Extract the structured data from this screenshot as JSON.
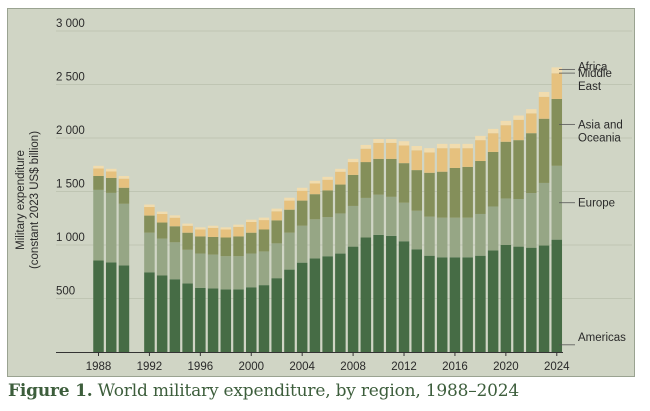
{
  "caption": {
    "label": "Figure 1.",
    "text": " World military expenditure, by region, 1988–2024"
  },
  "colors": {
    "background": "#d0d5c5",
    "gridline": "#bfc5b3",
    "axis": "#333333",
    "caption": "#3d5e3c"
  },
  "chart_data": {
    "type": "bar",
    "stacked": true,
    "title": "World military expenditure, by region, 1988–2024",
    "xlabel": "",
    "ylabel": [
      "Military expenditure",
      "(constant 2023 US$ billion)"
    ],
    "ylim": [
      0,
      3000
    ],
    "yticks": [
      500,
      1000,
      1500,
      2000,
      2500,
      3000
    ],
    "ytick_labels": [
      "500",
      "1 000",
      "1 500",
      "2 000",
      "2 500",
      "3 000"
    ],
    "xticks": [
      1988,
      1992,
      1996,
      2000,
      2004,
      2008,
      2012,
      2016,
      2020,
      2024
    ],
    "grid": true,
    "legend": "right (direct labels)",
    "note": "No data shown for 1991",
    "x": [
      1988,
      1989,
      1990,
      1991,
      1992,
      1993,
      1994,
      1995,
      1996,
      1997,
      1998,
      1999,
      2000,
      2001,
      2002,
      2003,
      2004,
      2005,
      2006,
      2007,
      2008,
      2009,
      2010,
      2011,
      2012,
      2013,
      2014,
      2015,
      2016,
      2017,
      2018,
      2019,
      2020,
      2021,
      2022,
      2023,
      2024
    ],
    "series": [
      {
        "name": "Americas",
        "label": "Americas",
        "color": "#466c45",
        "values": [
          855,
          837,
          810,
          null,
          745,
          715,
          680,
          640,
          600,
          595,
          585,
          585,
          605,
          625,
          690,
          770,
          835,
          875,
          895,
          920,
          985,
          1070,
          1095,
          1085,
          1035,
          960,
          900,
          885,
          885,
          885,
          900,
          950,
          1000,
          985,
          975,
          995,
          1050
        ]
      },
      {
        "name": "Europe",
        "label": "Europe",
        "color": "#96a685",
        "values": [
          660,
          650,
          575,
          null,
          370,
          345,
          345,
          315,
          320,
          315,
          310,
          310,
          315,
          315,
          325,
          345,
          345,
          365,
          365,
          375,
          380,
          370,
          375,
          365,
          360,
          360,
          365,
          370,
          370,
          370,
          390,
          410,
          435,
          445,
          510,
          585,
          690
        ]
      },
      {
        "name": "Asia and Oceania",
        "label": "Asia and\nOceania",
        "color": "#848f5a",
        "values": [
          130,
          140,
          150,
          null,
          160,
          150,
          150,
          160,
          160,
          165,
          175,
          185,
          195,
          205,
          215,
          215,
          235,
          235,
          250,
          270,
          290,
          335,
          335,
          355,
          370,
          380,
          410,
          430,
          465,
          475,
          495,
          510,
          530,
          550,
          560,
          600,
          625
        ]
      },
      {
        "name": "Middle East",
        "label": "Middle\nEast",
        "color": "#e6c17e",
        "values": [
          70,
          60,
          85,
          null,
          80,
          80,
          80,
          65,
          65,
          85,
          75,
          90,
          100,
          88,
          85,
          85,
          92,
          100,
          100,
          120,
          120,
          125,
          150,
          150,
          165,
          185,
          190,
          220,
          185,
          175,
          195,
          175,
          155,
          190,
          185,
          205,
          240
        ]
      },
      {
        "name": "Africa",
        "label": "Africa",
        "color": "#f1dcae",
        "values": [
          25,
          25,
          25,
          null,
          23,
          22,
          22,
          20,
          20,
          20,
          20,
          20,
          22,
          23,
          25,
          27,
          28,
          25,
          27,
          27,
          30,
          35,
          35,
          35,
          40,
          40,
          40,
          40,
          40,
          40,
          40,
          40,
          40,
          40,
          40,
          45,
          55
        ]
      }
    ]
  }
}
